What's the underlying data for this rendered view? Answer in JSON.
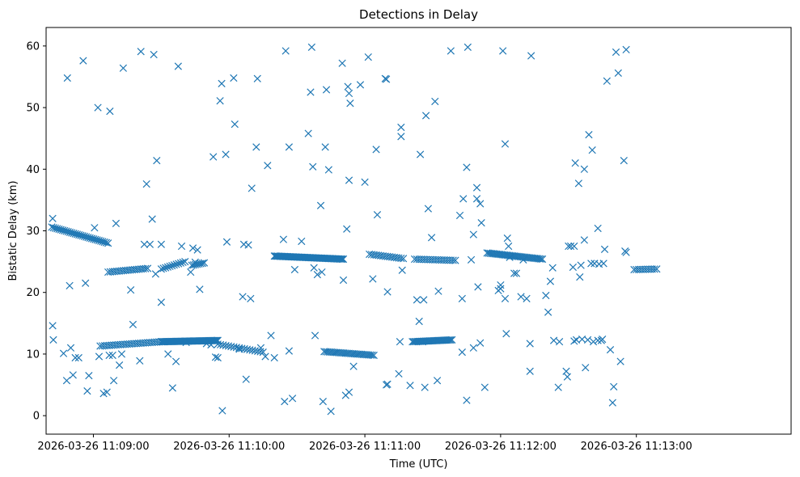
{
  "chart_data": {
    "type": "scatter",
    "title": "Detections in Delay",
    "xlabel": "Time (UTC)",
    "ylabel": "Bistatic Delay (km)",
    "marker": "x",
    "color": "#1f77b4",
    "x_unit": "seconds after 2026-03-26 11:08:00 UTC",
    "xlim": [
      39.1,
      368.4
    ],
    "ylim": [
      -3,
      63
    ],
    "xticks": [
      {
        "value": 60,
        "label": "2026-03-26 11:09:00"
      },
      {
        "value": 120,
        "label": "2026-03-26 11:10:00"
      },
      {
        "value": 180,
        "label": "2026-03-26 11:11:00"
      },
      {
        "value": 240,
        "label": "2026-03-26 11:12:00"
      },
      {
        "value": 300,
        "label": "2026-03-26 11:13:00"
      }
    ],
    "yticks": [
      {
        "value": 0,
        "label": "0"
      },
      {
        "value": 10,
        "label": "10"
      },
      {
        "value": 20,
        "label": "20"
      },
      {
        "value": 30,
        "label": "30"
      },
      {
        "value": 40,
        "label": "40"
      },
      {
        "value": 50,
        "label": "50"
      },
      {
        "value": 60,
        "label": "60"
      }
    ],
    "tracks": [
      {
        "name": "upper-track-1",
        "x0": 41.6,
        "x1": 66.5,
        "y0": 30.6,
        "y1": 28.0,
        "step": 0.8
      },
      {
        "name": "upper-track-2",
        "x0": 66.5,
        "x1": 84.0,
        "y0": 23.3,
        "y1": 23.9,
        "step": 1.0
      },
      {
        "name": "upper-track-3",
        "x0": 90.0,
        "x1": 100.5,
        "y0": 23.8,
        "y1": 25.0,
        "step": 1.0
      },
      {
        "name": "upper-track-4",
        "x0": 103.5,
        "x1": 109.0,
        "y0": 24.4,
        "y1": 24.8,
        "step": 0.8
      },
      {
        "name": "upper-track-5",
        "x0": 140.0,
        "x1": 170.5,
        "y0": 25.9,
        "y1": 25.4,
        "step": 0.5
      },
      {
        "name": "upper-track-6",
        "x0": 182.0,
        "x1": 197.0,
        "y0": 26.2,
        "y1": 25.5,
        "step": 1.0
      },
      {
        "name": "upper-track-7",
        "x0": 202.0,
        "x1": 220.0,
        "y0": 25.4,
        "y1": 25.2,
        "step": 1.0
      },
      {
        "name": "upper-track-8",
        "x0": 234.0,
        "x1": 258.5,
        "y0": 26.4,
        "y1": 25.4,
        "step": 0.7
      },
      {
        "name": "upper-track-9",
        "x0": 299.0,
        "x1": 309.0,
        "y0": 23.7,
        "y1": 23.8,
        "step": 1.0
      },
      {
        "name": "lower-track-1",
        "x0": 63.0,
        "x1": 90.0,
        "y0": 11.3,
        "y1": 12.0,
        "step": 1.0
      },
      {
        "name": "lower-track-2",
        "x0": 90.0,
        "x1": 115.0,
        "y0": 12.0,
        "y1": 12.2,
        "step": 0.4
      },
      {
        "name": "lower-track-3",
        "x0": 115.0,
        "x1": 135.0,
        "y0": 11.6,
        "y1": 10.3,
        "step": 1.2
      },
      {
        "name": "lower-track-4",
        "x0": 162.0,
        "x1": 184.0,
        "y0": 10.4,
        "y1": 9.8,
        "step": 0.8
      },
      {
        "name": "lower-track-5",
        "x0": 201.0,
        "x1": 218.5,
        "y0": 12.0,
        "y1": 12.3,
        "step": 0.6
      }
    ],
    "points": [
      [
        42.0,
        14.6
      ],
      [
        42.3,
        12.3
      ],
      [
        42.0,
        32.0
      ],
      [
        46.8,
        10.1
      ],
      [
        48.2,
        5.7
      ],
      [
        49.5,
        21.1
      ],
      [
        50.0,
        11.0
      ],
      [
        51.0,
        6.6
      ],
      [
        52.0,
        9.4
      ],
      [
        53.5,
        9.4
      ],
      [
        48.5,
        54.8
      ],
      [
        55.5,
        57.6
      ],
      [
        56.5,
        21.5
      ],
      [
        57.3,
        4.0
      ],
      [
        58.0,
        6.5
      ],
      [
        60.5,
        30.5
      ],
      [
        62.0,
        50.0
      ],
      [
        62.5,
        9.6
      ],
      [
        64.5,
        3.6
      ],
      [
        66.0,
        3.8
      ],
      [
        67.3,
        49.4
      ],
      [
        67.0,
        9.8
      ],
      [
        68.5,
        9.8
      ],
      [
        69.0,
        5.7
      ],
      [
        70.0,
        31.2
      ],
      [
        71.5,
        8.2
      ],
      [
        72.5,
        10.0
      ],
      [
        73.2,
        56.4
      ],
      [
        76.5,
        20.4
      ],
      [
        77.5,
        14.8
      ],
      [
        80.5,
        8.9
      ],
      [
        81.0,
        59.1
      ],
      [
        82.5,
        27.8
      ],
      [
        83.5,
        37.6
      ],
      [
        85.0,
        27.8
      ],
      [
        86.0,
        31.9
      ],
      [
        86.7,
        58.6
      ],
      [
        88.0,
        41.4
      ],
      [
        87.5,
        23.0
      ],
      [
        90.0,
        27.8
      ],
      [
        90.0,
        18.4
      ],
      [
        93.0,
        10.0
      ],
      [
        95.0,
        4.5
      ],
      [
        96.5,
        8.8
      ],
      [
        97.5,
        56.7
      ],
      [
        99.0,
        27.5
      ],
      [
        101.0,
        11.9
      ],
      [
        103.0,
        23.3
      ],
      [
        104.0,
        27.2
      ],
      [
        105.0,
        24.9
      ],
      [
        106.0,
        26.9
      ],
      [
        107.0,
        20.5
      ],
      [
        110.0,
        11.7
      ],
      [
        112.0,
        11.5
      ],
      [
        113.0,
        42.0
      ],
      [
        114.0,
        9.5
      ],
      [
        115.0,
        9.4
      ],
      [
        116.0,
        51.1
      ],
      [
        116.7,
        53.9
      ],
      [
        117.0,
        0.8
      ],
      [
        118.5,
        42.4
      ],
      [
        119.0,
        28.2
      ],
      [
        122.0,
        54.8
      ],
      [
        122.5,
        47.3
      ],
      [
        124.5,
        10.8
      ],
      [
        126.0,
        19.3
      ],
      [
        126.5,
        27.8
      ],
      [
        127.5,
        5.9
      ],
      [
        128.5,
        27.7
      ],
      [
        129.5,
        19.0
      ],
      [
        130.0,
        36.9
      ],
      [
        132.0,
        43.6
      ],
      [
        132.5,
        54.7
      ],
      [
        134.0,
        11.0
      ],
      [
        136.0,
        9.6
      ],
      [
        137.0,
        40.6
      ],
      [
        138.5,
        13.0
      ],
      [
        140.0,
        9.4
      ],
      [
        144.0,
        28.6
      ],
      [
        145.0,
        59.2
      ],
      [
        144.5,
        2.3
      ],
      [
        146.5,
        43.6
      ],
      [
        146.5,
        10.5
      ],
      [
        148.0,
        2.8
      ],
      [
        149.0,
        23.7
      ],
      [
        152.0,
        28.3
      ],
      [
        155.0,
        45.8
      ],
      [
        156.0,
        52.5
      ],
      [
        156.5,
        59.8
      ],
      [
        157.0,
        40.4
      ],
      [
        157.5,
        24.0
      ],
      [
        158.0,
        13.0
      ],
      [
        159.0,
        22.9
      ],
      [
        160.5,
        34.1
      ],
      [
        161.0,
        23.3
      ],
      [
        161.5,
        2.3
      ],
      [
        162.5,
        43.6
      ],
      [
        163.0,
        52.9
      ],
      [
        164.0,
        39.9
      ],
      [
        165.0,
        0.7
      ],
      [
        170.0,
        57.2
      ],
      [
        170.5,
        22.0
      ],
      [
        172.0,
        30.3
      ],
      [
        172.5,
        53.4
      ],
      [
        173.0,
        52.3
      ],
      [
        173.5,
        50.7
      ],
      [
        173.0,
        38.2
      ],
      [
        171.5,
        3.3
      ],
      [
        173.0,
        3.8
      ],
      [
        175.0,
        8.0
      ],
      [
        178.0,
        53.7
      ],
      [
        180.0,
        37.9
      ],
      [
        181.5,
        58.2
      ],
      [
        183.5,
        22.2
      ],
      [
        185.0,
        43.2
      ],
      [
        185.5,
        32.6
      ],
      [
        189.0,
        54.7
      ],
      [
        189.5,
        54.6
      ],
      [
        190.0,
        20.1
      ],
      [
        189.5,
        5.0
      ],
      [
        190.0,
        5.1
      ],
      [
        195.0,
        6.8
      ],
      [
        195.5,
        12.0
      ],
      [
        196.0,
        45.3
      ],
      [
        196.0,
        46.8
      ],
      [
        196.5,
        23.6
      ],
      [
        200.0,
        4.9
      ],
      [
        203.0,
        18.8
      ],
      [
        204.0,
        15.3
      ],
      [
        204.5,
        42.4
      ],
      [
        205.5,
        12.0
      ],
      [
        206.0,
        18.8
      ],
      [
        206.5,
        4.6
      ],
      [
        207.0,
        48.7
      ],
      [
        208.0,
        33.6
      ],
      [
        209.5,
        28.9
      ],
      [
        211.0,
        51.0
      ],
      [
        212.0,
        5.7
      ],
      [
        212.5,
        20.2
      ],
      [
        218.0,
        59.2
      ],
      [
        222.0,
        32.5
      ],
      [
        223.0,
        19.0
      ],
      [
        223.0,
        10.3
      ],
      [
        223.5,
        35.2
      ],
      [
        225.0,
        40.3
      ],
      [
        225.0,
        2.5
      ],
      [
        225.5,
        59.8
      ],
      [
        227.0,
        25.3
      ],
      [
        228.0,
        29.4
      ],
      [
        228.0,
        11.0
      ],
      [
        229.5,
        37.0
      ],
      [
        229.5,
        35.2
      ],
      [
        230.0,
        20.9
      ],
      [
        231.0,
        34.4
      ],
      [
        231.5,
        31.3
      ],
      [
        231.0,
        11.8
      ],
      [
        233.0,
        4.6
      ],
      [
        239.0,
        20.3
      ],
      [
        240.0,
        20.6
      ],
      [
        240.0,
        21.2
      ],
      [
        241.0,
        59.2
      ],
      [
        242.0,
        19.0
      ],
      [
        242.5,
        13.3
      ],
      [
        242.0,
        44.1
      ],
      [
        243.0,
        28.8
      ],
      [
        243.5,
        27.5
      ],
      [
        244.0,
        25.7
      ],
      [
        246.0,
        23.1
      ],
      [
        247.0,
        23.1
      ],
      [
        249.0,
        19.3
      ],
      [
        250.0,
        25.3
      ],
      [
        251.5,
        19.0
      ],
      [
        253.0,
        7.2
      ],
      [
        253.0,
        11.7
      ],
      [
        253.5,
        58.4
      ],
      [
        260.0,
        19.5
      ],
      [
        261.0,
        16.8
      ],
      [
        262.0,
        21.8
      ],
      [
        263.0,
        24.0
      ],
      [
        263.5,
        12.2
      ],
      [
        265.5,
        4.6
      ],
      [
        266.0,
        12.0
      ],
      [
        269.0,
        7.2
      ],
      [
        269.5,
        6.3
      ],
      [
        270.0,
        27.5
      ],
      [
        271.0,
        27.5
      ],
      [
        272.5,
        27.5
      ],
      [
        272.0,
        24.1
      ],
      [
        272.5,
        12.1
      ],
      [
        273.0,
        41.0
      ],
      [
        273.5,
        12.3
      ],
      [
        274.5,
        37.7
      ],
      [
        275.0,
        22.5
      ],
      [
        275.5,
        24.4
      ],
      [
        276.0,
        12.4
      ],
      [
        277.0,
        40.0
      ],
      [
        277.0,
        28.5
      ],
      [
        277.5,
        7.8
      ],
      [
        278.5,
        12.3
      ],
      [
        279.0,
        45.6
      ],
      [
        280.0,
        24.7
      ],
      [
        280.5,
        43.1
      ],
      [
        281.5,
        24.7
      ],
      [
        283.0,
        30.4
      ],
      [
        283.5,
        24.6
      ],
      [
        284.5,
        12.2
      ],
      [
        285.0,
        12.4
      ],
      [
        285.5,
        24.7
      ],
      [
        286.0,
        27.0
      ],
      [
        287.0,
        54.3
      ],
      [
        288.5,
        10.7
      ],
      [
        289.5,
        2.1
      ],
      [
        290.0,
        4.7
      ],
      [
        291.0,
        59.0
      ],
      [
        292.0,
        55.6
      ],
      [
        293.0,
        8.8
      ],
      [
        294.5,
        41.4
      ],
      [
        295.0,
        26.7
      ],
      [
        295.5,
        26.5
      ],
      [
        295.5,
        59.4
      ],
      [
        283.0,
        12.2
      ],
      [
        281.0,
        12.0
      ]
    ]
  }
}
